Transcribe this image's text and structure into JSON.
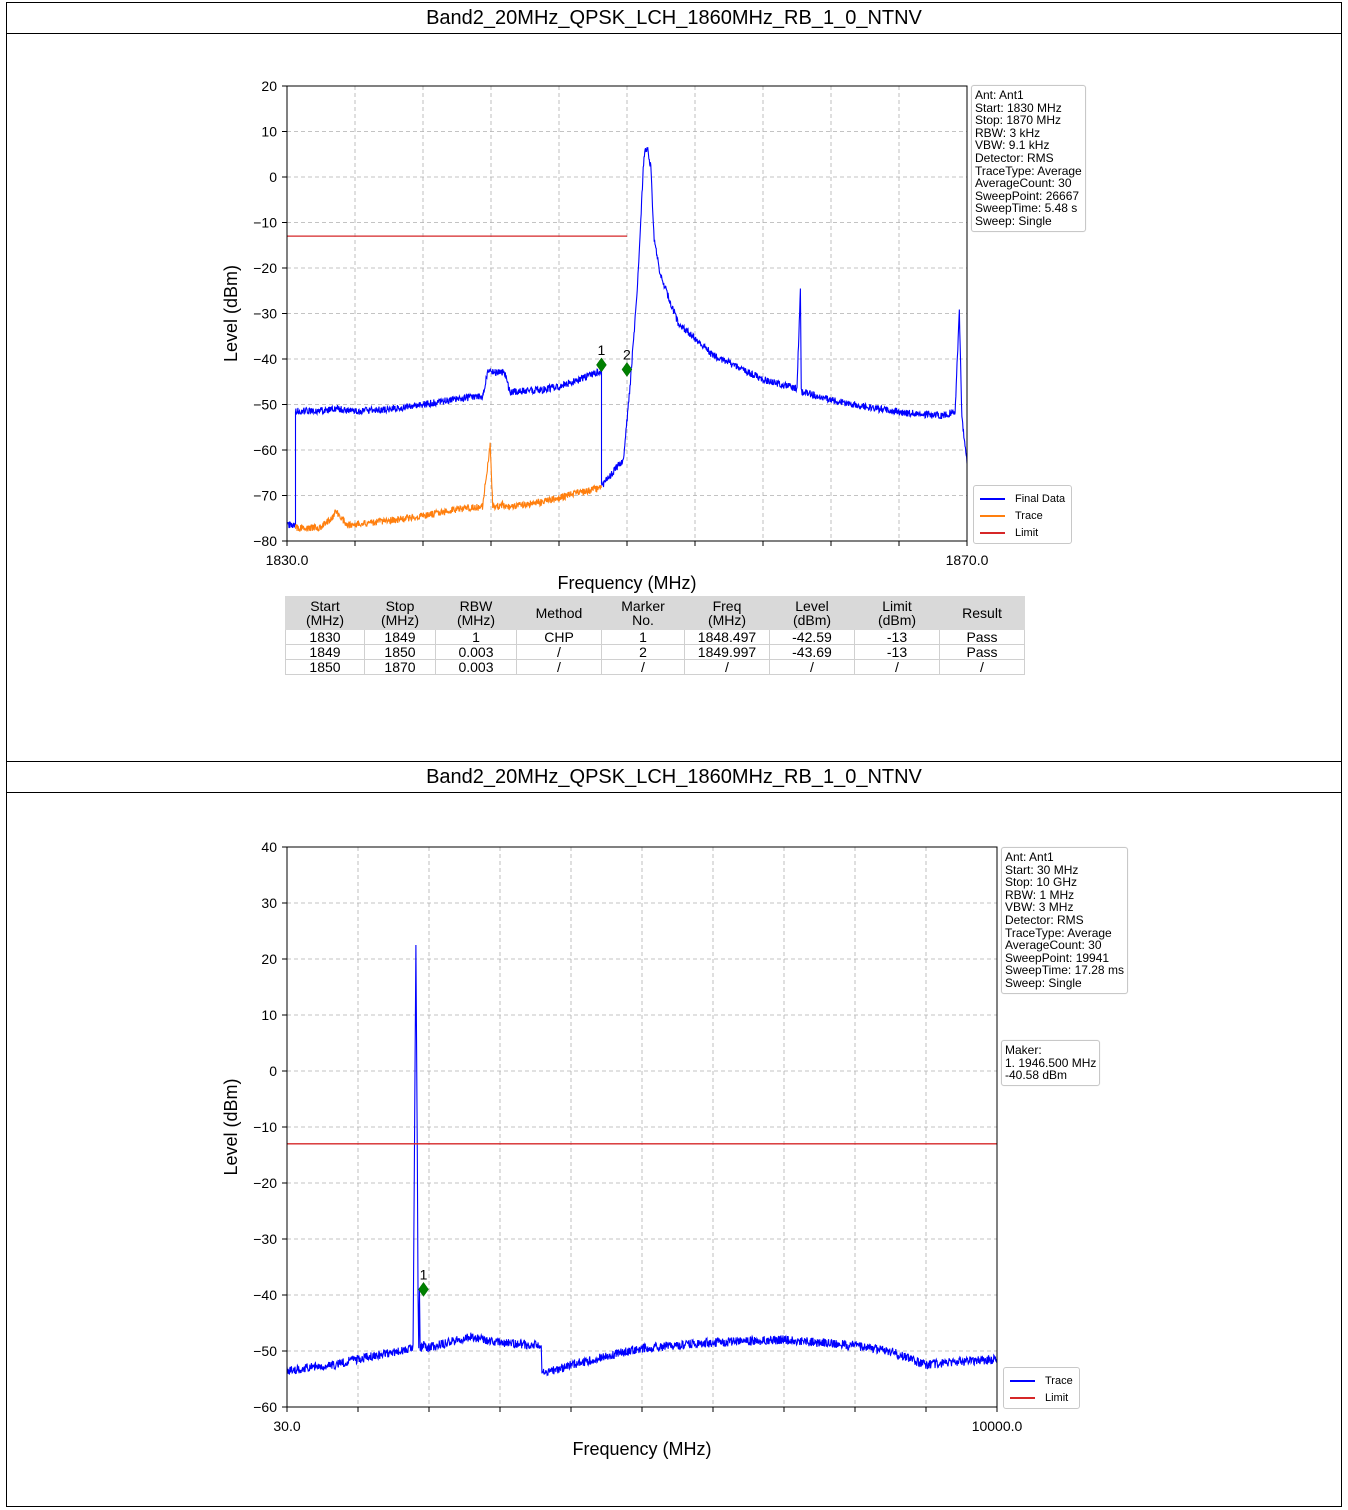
{
  "charts": [
    {
      "title": "Band2_20MHz_QPSK_LCH_1860MHz_RB_1_0_NTNV",
      "info_lines": [
        "Ant: Ant1",
        "Start: 1830 MHz",
        "Stop: 1870 MHz",
        "RBW: 3 kHz",
        "VBW: 9.1 kHz",
        "Detector: RMS",
        "TraceType: Average",
        "AverageCount: 30",
        "SweepPoint: 26667",
        "SweepTime: 5.48 s",
        "Sweep: Single"
      ],
      "legend": [
        {
          "label": "Final Data",
          "color": "#0000ff"
        },
        {
          "label": "Trace",
          "color": "#ff7f0e"
        },
        {
          "label": "Limit",
          "color": "#d62728"
        }
      ],
      "table": {
        "headers": [
          [
            "Start",
            "(MHz)"
          ],
          [
            "Stop",
            "(MHz)"
          ],
          [
            "RBW",
            "(MHz)"
          ],
          [
            "Method"
          ],
          [
            "Marker",
            "No."
          ],
          [
            "Freq",
            "(MHz)"
          ],
          [
            "Level",
            "(dBm)"
          ],
          [
            "Limit",
            "(dBm)"
          ],
          [
            "Result"
          ]
        ],
        "rows": [
          [
            "1830",
            "1849",
            "1",
            "CHP",
            "1",
            "1848.497",
            "-42.59",
            "-13",
            "Pass"
          ],
          [
            "1849",
            "1850",
            "0.003",
            "/",
            "2",
            "1849.997",
            "-43.69",
            "-13",
            "Pass"
          ],
          [
            "1850",
            "1870",
            "0.003",
            "/",
            "/",
            "/",
            "/",
            "/",
            "/"
          ]
        ]
      }
    },
    {
      "title": "Band2_20MHz_QPSK_LCH_1860MHz_RB_1_0_NTNV",
      "info_lines": [
        "Ant: Ant1",
        "Start: 30 MHz",
        "Stop: 10 GHz",
        "RBW: 1 MHz",
        "VBW: 3 MHz",
        "Detector: RMS",
        "TraceType: Average",
        "AverageCount: 30",
        "SweepPoint: 19941",
        "SweepTime: 17.28 ms",
        "Sweep: Single"
      ],
      "marker_box_lines": [
        "Maker:",
        "1. 1946.500 MHz",
        "   -40.58 dBm"
      ],
      "legend": [
        {
          "label": "Trace",
          "color": "#0000ff"
        },
        {
          "label": "Limit",
          "color": "#d62728"
        }
      ]
    }
  ],
  "chart_data": [
    {
      "type": "line",
      "xlabel": "Frequency (MHz)",
      "ylabel": "Level (dBm)",
      "xlim": [
        1830,
        1870
      ],
      "ylim": [
        -80,
        20
      ],
      "xtick_labels": [
        "1830.0",
        "1870.0"
      ],
      "yticks": [
        20,
        10,
        0,
        -10,
        -20,
        -30,
        -40,
        -50,
        -60,
        -70,
        -80
      ],
      "grid": true,
      "series": [
        {
          "name": "Final Data",
          "color": "#0000ff",
          "x": [
            1830,
            1830.5,
            1830.5,
            1832.4,
            1832.9,
            1833.4,
            1834,
            1836,
            1838,
            1840,
            1841.5,
            1841.8,
            1842.8,
            1843.1,
            1845,
            1846,
            1847,
            1848.5,
            1848.5,
            1849.8,
            1850.2,
            1850.6,
            1851,
            1851.2,
            1851.4,
            1851.6,
            1852,
            1853,
            1855,
            1858,
            1860,
            1860.2,
            1860.25,
            1860.3,
            1862,
            1864,
            1866,
            1868.5,
            1869.3,
            1869.55,
            1869.7,
            1870
          ],
          "y": [
            -76.5,
            -76.5,
            -51.5,
            -51.3,
            -50.8,
            -51.3,
            -51.5,
            -51,
            -50,
            -48.8,
            -48.2,
            -43,
            -43,
            -47.2,
            -46.8,
            -46,
            -44.8,
            -42.6,
            -68,
            -62,
            -45,
            -25,
            5,
            6.5,
            2,
            -14,
            -22,
            -32,
            -39,
            -44.5,
            -46.5,
            -24.5,
            -46.5,
            -47.3,
            -49,
            -50.5,
            -51.7,
            -52.5,
            -51.5,
            -29.5,
            -53,
            -63
          ]
        },
        {
          "name": "Trace",
          "color": "#ff7f0e",
          "x": [
            1830.5,
            1832,
            1832.6,
            1832.9,
            1833.5,
            1835,
            1838,
            1840,
            1841.5,
            1841.95,
            1842.1,
            1842.3,
            1842.7,
            1843.0,
            1845,
            1847,
            1848.5
          ],
          "y": [
            -77.2,
            -77,
            -75,
            -73.5,
            -76.5,
            -76,
            -74.5,
            -73,
            -72.5,
            -59,
            -72,
            -72.5,
            -72,
            -72.5,
            -71.5,
            -69.5,
            -68.3
          ]
        },
        {
          "name": "Limit",
          "color": "#d62728",
          "x": [
            1830,
            1850
          ],
          "y": [
            -13,
            -13
          ]
        }
      ],
      "markers": [
        {
          "label": "1",
          "x": 1848.497,
          "y": -41.3
        },
        {
          "label": "2",
          "x": 1849.997,
          "y": -42.3
        }
      ]
    },
    {
      "type": "line",
      "xlabel": "Frequency (MHz)",
      "ylabel": "Level (dBm)",
      "xlim": [
        30,
        10000
      ],
      "ylim": [
        -60,
        40
      ],
      "xtick_labels": [
        "30.0",
        "10000.0"
      ],
      "yticks": [
        40,
        30,
        20,
        10,
        0,
        -10,
        -20,
        -30,
        -40,
        -50,
        -60
      ],
      "grid": true,
      "series": [
        {
          "name": "Trace",
          "color": "#0000ff",
          "x": [
            30,
            300,
            700,
            1000,
            1400,
            1800,
            1840,
            1860,
            1870,
            1880,
            1890,
            1900,
            1950,
            2000,
            2600,
            3000,
            3600,
            3610,
            3900,
            4000,
            4500,
            5000,
            6000,
            7000,
            8000,
            8500,
            8800,
            9000,
            9300,
            10000
          ],
          "y": [
            -53.5,
            -53,
            -52.5,
            -51.5,
            -50.5,
            -49.5,
            22.5,
            -15,
            -40,
            -49.5,
            -39,
            -49.5,
            -49,
            -49.5,
            -47.5,
            -48.5,
            -49,
            -54,
            -53,
            -52.5,
            -51,
            -49.5,
            -48.5,
            -48,
            -49,
            -50,
            -51.5,
            -52.5,
            -52,
            -51.5
          ]
        },
        {
          "name": "Limit",
          "color": "#d62728",
          "x": [
            30,
            10000
          ],
          "y": [
            -13,
            -13
          ]
        }
      ],
      "markers": [
        {
          "label": "1",
          "x": 1946.5,
          "y": -39.0
        }
      ]
    }
  ]
}
